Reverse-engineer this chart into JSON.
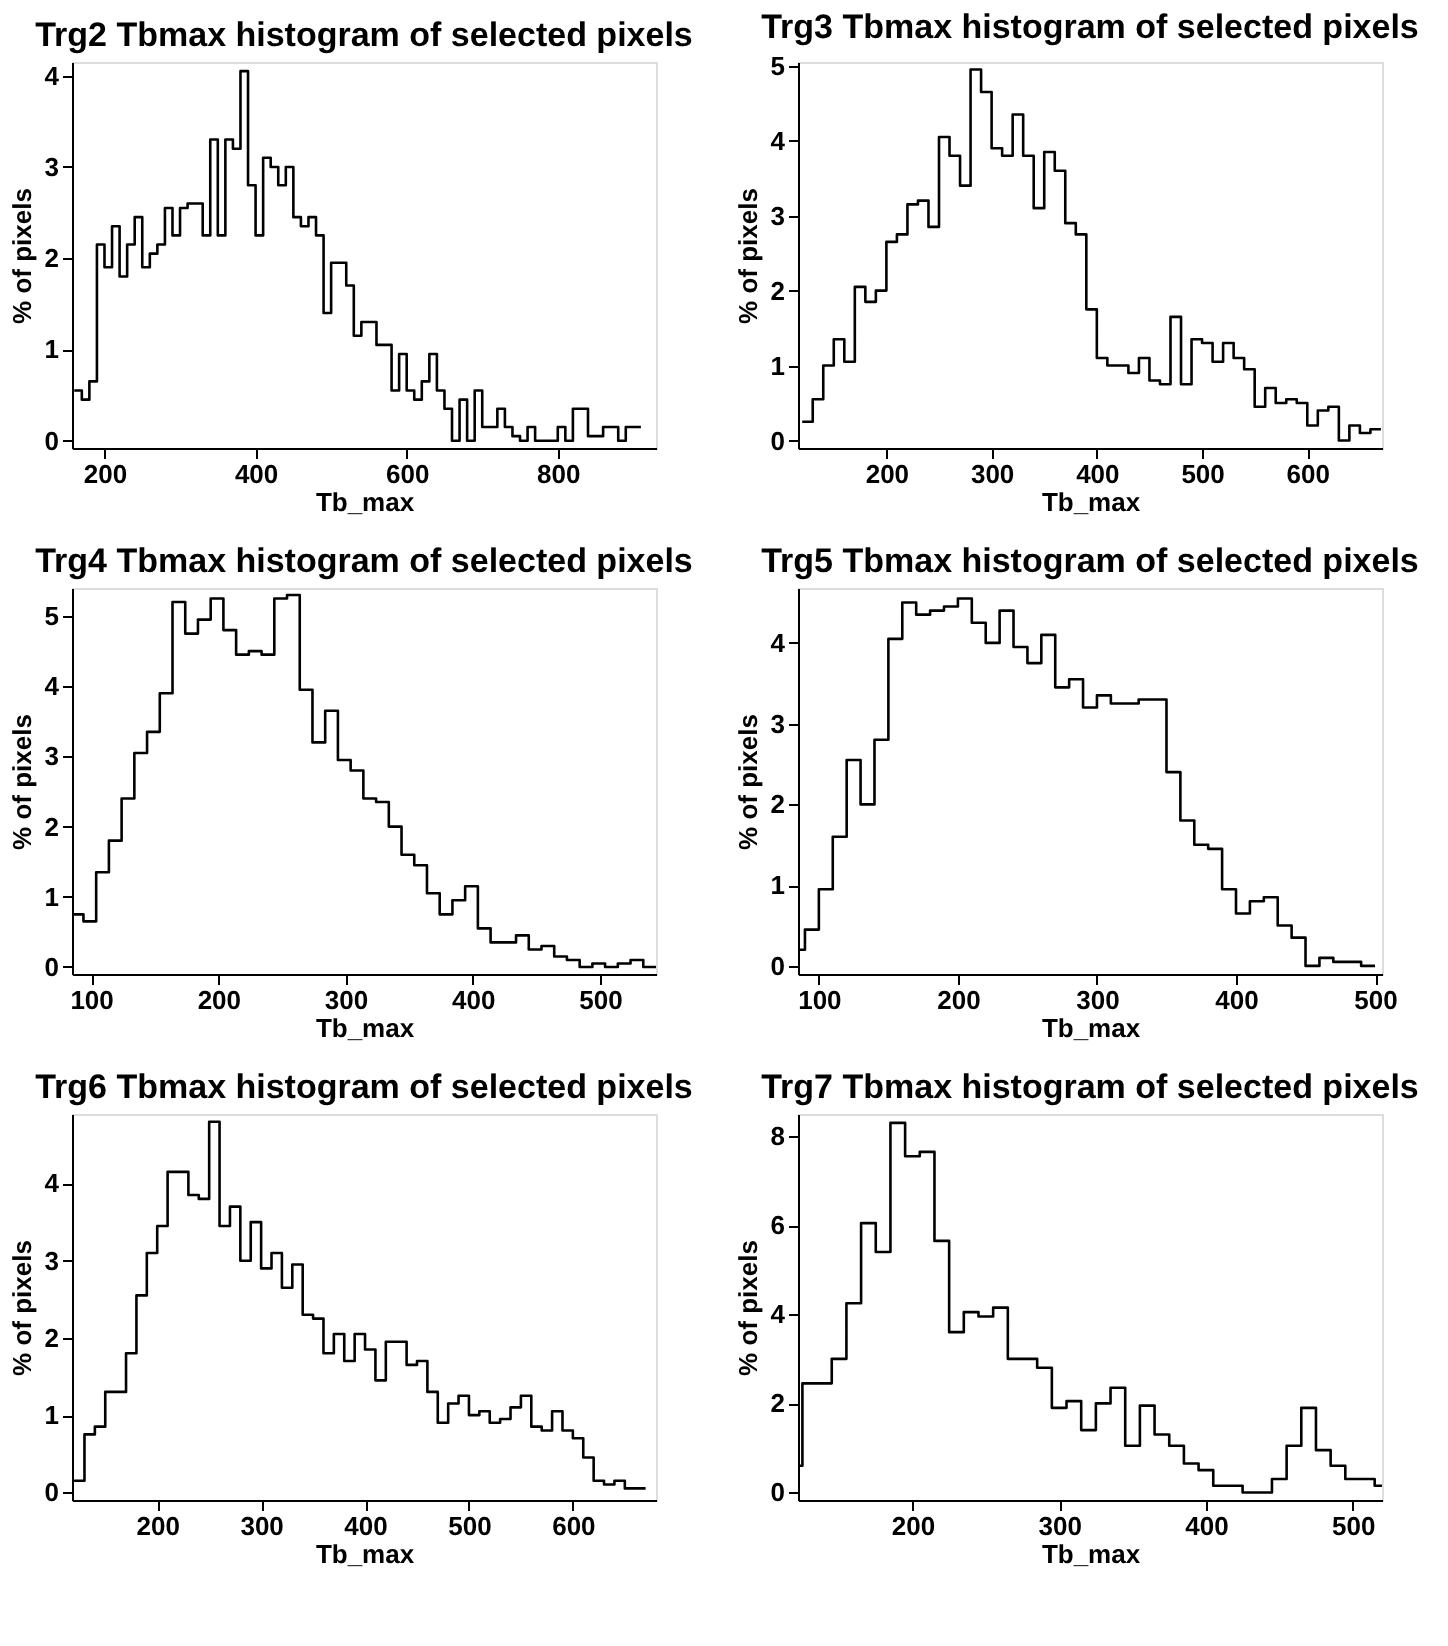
{
  "chart_data": [
    {
      "type": "histogram",
      "title": "Trg2 Tbmax histogram of selected pixels",
      "xlabel": "Tb_max",
      "ylabel": "% of pixels",
      "color": "#000000",
      "xlim": [
        157,
        930
      ],
      "ylim": [
        -0.08,
        4.15
      ],
      "xticks": [
        200,
        400,
        600,
        800
      ],
      "yticks": [
        0,
        1,
        2,
        3,
        4
      ],
      "bins": [
        160,
        170,
        180,
        190,
        200,
        210,
        220,
        230,
        240,
        250,
        260,
        270,
        280,
        290,
        300,
        310,
        320,
        330,
        340,
        350,
        360,
        370,
        380,
        390,
        400,
        410,
        420,
        430,
        440,
        450,
        460,
        470,
        480,
        490,
        500,
        510,
        520,
        530,
        540,
        550,
        560,
        570,
        580,
        590,
        600,
        610,
        620,
        630,
        640,
        650,
        660,
        670,
        680,
        690,
        700,
        710,
        720,
        730,
        740,
        750,
        760,
        770,
        780,
        790,
        800,
        810,
        820,
        830,
        840,
        850,
        860,
        870,
        880,
        890,
        900,
        910
      ],
      "values": [
        0.55,
        0.45,
        0.65,
        2.15,
        1.9,
        2.35,
        1.8,
        2.15,
        2.45,
        1.9,
        2.05,
        2.15,
        2.55,
        2.25,
        2.55,
        2.6,
        2.6,
        2.25,
        3.3,
        2.25,
        3.3,
        3.2,
        4.05,
        2.8,
        2.25,
        3.1,
        3.0,
        2.8,
        3.0,
        2.45,
        2.35,
        2.45,
        2.25,
        1.4,
        1.95,
        1.95,
        1.7,
        1.15,
        1.3,
        1.3,
        1.05,
        1.05,
        0.55,
        0.95,
        0.55,
        0.45,
        0.65,
        0.95,
        0.55,
        0.35,
        0,
        0.45,
        0,
        0.55,
        0.15,
        0.15,
        0.35,
        0.15,
        0.05,
        0,
        0.15,
        0,
        0,
        0,
        0.15,
        0,
        0.35,
        0.35,
        0.05,
        0.05,
        0.15,
        0.15,
        0,
        0.15,
        0.15
      ]
    },
    {
      "type": "histogram",
      "title": "Trg3 Tbmax histogram of selected pixels",
      "xlabel": "Tb_max",
      "ylabel": "% of pixels",
      "color": "#000000",
      "xlim": [
        116,
        671
      ],
      "ylim": [
        -0.1,
        5.05
      ],
      "xticks": [
        200,
        300,
        400,
        500,
        600
      ],
      "yticks": [
        0,
        1,
        2,
        3,
        4,
        5
      ],
      "bins": [
        120,
        130,
        140,
        150,
        160,
        170,
        180,
        190,
        200,
        210,
        220,
        230,
        240,
        250,
        260,
        270,
        280,
        290,
        300,
        310,
        320,
        330,
        340,
        350,
        360,
        370,
        380,
        390,
        400,
        410,
        420,
        430,
        440,
        450,
        460,
        470,
        480,
        490,
        500,
        510,
        520,
        530,
        540,
        550,
        560,
        570,
        580,
        590,
        600,
        610,
        620,
        630,
        640,
        650,
        660,
        670
      ],
      "values": [
        0.25,
        0.55,
        1.0,
        1.35,
        1.05,
        2.05,
        1.85,
        2.0,
        2.65,
        2.75,
        3.15,
        3.2,
        2.85,
        4.05,
        3.8,
        3.4,
        4.95,
        4.65,
        3.9,
        3.8,
        4.35,
        3.8,
        3.1,
        3.85,
        3.6,
        2.9,
        2.75,
        1.75,
        1.1,
        1.0,
        1.0,
        0.9,
        1.1,
        0.8,
        0.75,
        1.65,
        0.75,
        1.35,
        1.3,
        1.05,
        1.3,
        1.1,
        0.95,
        0.45,
        0.7,
        0.5,
        0.55,
        0.5,
        0.2,
        0.4,
        0.45,
        0.0,
        0.2,
        0.1,
        0.15
      ]
    },
    {
      "type": "histogram",
      "title": "Trg4 Tbmax histogram of selected pixels",
      "xlabel": "Tb_max",
      "ylabel": "% of pixels",
      "color": "#000000",
      "xlim": [
        85,
        544
      ],
      "ylim": [
        -0.1,
        5.4
      ],
      "xticks": [
        100,
        200,
        300,
        400,
        500
      ],
      "yticks": [
        0,
        1,
        2,
        3,
        4,
        5
      ],
      "bins": [
        85,
        94,
        104,
        114,
        124,
        134,
        144,
        154,
        164,
        174,
        184,
        194,
        204,
        214,
        224,
        234,
        244,
        254,
        264,
        274,
        284,
        294,
        304,
        314,
        324,
        334,
        344,
        354,
        364,
        374,
        384,
        394,
        404,
        414,
        424,
        434,
        444,
        454,
        464,
        474,
        484,
        494,
        504,
        514,
        524,
        534,
        544
      ],
      "values": [
        0.75,
        0.65,
        1.35,
        1.8,
        2.4,
        3.05,
        3.35,
        3.9,
        5.2,
        4.75,
        4.95,
        5.25,
        4.8,
        4.45,
        4.5,
        4.45,
        5.25,
        5.3,
        3.95,
        3.2,
        3.65,
        2.95,
        2.8,
        2.4,
        2.35,
        2.0,
        1.6,
        1.45,
        1.05,
        0.75,
        0.95,
        1.15,
        0.55,
        0.35,
        0.35,
        0.45,
        0.25,
        0.3,
        0.15,
        0.1,
        0.0,
        0.05,
        0.0,
        0.05,
        0.1,
        0.0
      ]
    },
    {
      "type": "histogram",
      "title": "Trg5 Tbmax histogram of selected pixels",
      "xlabel": "Tb_max",
      "ylabel": "% of pixels",
      "color": "#000000",
      "xlim": [
        85,
        505
      ],
      "ylim": [
        -0.1,
        4.68
      ],
      "xticks": [
        100,
        200,
        300,
        400,
        500
      ],
      "yticks": [
        0,
        1,
        2,
        3,
        4
      ],
      "bins": [
        85,
        90,
        100,
        110,
        120,
        130,
        140,
        150,
        160,
        170,
        180,
        190,
        200,
        210,
        220,
        230,
        240,
        250,
        260,
        270,
        280,
        290,
        300,
        310,
        320,
        330,
        340,
        350,
        360,
        370,
        380,
        390,
        400,
        410,
        420,
        430,
        440,
        450,
        460,
        470,
        480,
        490,
        500
      ],
      "values": [
        0.2,
        0.45,
        0.95,
        1.6,
        2.55,
        2.0,
        2.8,
        4.05,
        4.5,
        4.35,
        4.4,
        4.45,
        4.55,
        4.25,
        4.0,
        4.4,
        3.95,
        3.75,
        4.1,
        3.45,
        3.55,
        3.2,
        3.35,
        3.25,
        3.25,
        3.3,
        3.3,
        2.4,
        1.8,
        1.5,
        1.45,
        0.95,
        0.65,
        0.8,
        0.85,
        0.5,
        0.35,
        0.0,
        0.1,
        0.05,
        0.05,
        0.0
      ]
    },
    {
      "type": "histogram",
      "title": "Trg6 Tbmax histogram of selected pixels",
      "xlabel": "Tb_max",
      "ylabel": "% of pixels",
      "color": "#000000",
      "xlim": [
        118,
        680
      ],
      "ylim": [
        -0.1,
        4.9
      ],
      "xticks": [
        200,
        300,
        400,
        500,
        600
      ],
      "yticks": [
        0,
        1,
        2,
        3,
        4
      ],
      "bins": [
        120,
        130,
        140,
        150,
        160,
        170,
        180,
        190,
        200,
        210,
        220,
        230,
        240,
        250,
        260,
        270,
        280,
        290,
        300,
        310,
        320,
        330,
        340,
        350,
        360,
        370,
        380,
        390,
        400,
        410,
        420,
        430,
        440,
        450,
        460,
        470,
        480,
        490,
        500,
        510,
        520,
        530,
        540,
        550,
        560,
        570,
        580,
        590,
        600,
        610,
        620,
        630,
        640,
        650,
        660,
        670
      ],
      "values": [
        0.15,
        0.75,
        0.85,
        1.3,
        1.3,
        1.8,
        2.55,
        3.1,
        3.45,
        4.15,
        4.15,
        3.85,
        3.8,
        4.8,
        3.45,
        3.7,
        3.0,
        3.5,
        2.9,
        3.1,
        2.65,
        2.95,
        2.3,
        2.25,
        1.8,
        2.05,
        1.7,
        2.05,
        1.85,
        1.45,
        1.95,
        1.95,
        1.65,
        1.7,
        1.3,
        0.9,
        1.15,
        1.25,
        1.0,
        1.05,
        0.9,
        0.95,
        1.1,
        1.25,
        0.85,
        0.8,
        1.05,
        0.8,
        0.7,
        0.45,
        0.15,
        0.1,
        0.15,
        0.05,
        0.05
      ]
    },
    {
      "type": "histogram",
      "title": "Trg7 Tbmax histogram of selected pixels",
      "xlabel": "Tb_max",
      "ylabel": "% of pixels",
      "color": "#000000",
      "xlim": [
        122,
        520
      ],
      "ylim": [
        -0.17,
        8.5
      ],
      "xticks": [
        200,
        300,
        400,
        500
      ],
      "yticks": [
        0,
        2,
        4,
        6,
        8
      ],
      "bins": [
        122,
        125,
        135,
        145,
        155,
        165,
        175,
        185,
        195,
        205,
        215,
        225,
        235,
        245,
        255,
        265,
        275,
        285,
        295,
        305,
        315,
        325,
        335,
        345,
        355,
        365,
        375,
        385,
        395,
        405,
        415,
        425,
        435,
        445,
        455,
        465,
        475,
        485,
        495,
        505,
        515,
        520
      ],
      "values": [
        0.6,
        2.45,
        2.45,
        3.0,
        4.25,
        6.05,
        5.4,
        8.3,
        7.55,
        7.65,
        5.65,
        3.6,
        4.05,
        3.95,
        4.15,
        3.0,
        3.0,
        2.8,
        1.9,
        2.05,
        1.4,
        2.0,
        2.35,
        1.05,
        1.95,
        1.3,
        1.05,
        0.65,
        0.5,
        0.15,
        0.15,
        0,
        0,
        0.3,
        1.05,
        1.9,
        0.95,
        0.6,
        0.3,
        0.3,
        0.15
      ]
    }
  ]
}
